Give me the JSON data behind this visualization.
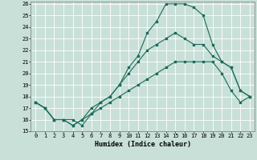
{
  "xlabel": "Humidex (Indice chaleur)",
  "xlim": [
    -0.5,
    23.5
  ],
  "ylim": [
    15,
    26
  ],
  "bg_color": "#c8e0d8",
  "line_color": "#1a6b5a",
  "grid_color": "#ffffff",
  "line1_x": [
    0,
    1,
    2,
    3,
    4,
    5,
    6,
    7,
    8,
    9,
    10,
    11,
    12,
    13,
    14,
    15,
    16,
    17,
    18,
    19,
    20,
    21,
    22,
    23
  ],
  "line1_y": [
    17.5,
    17.0,
    16.0,
    16.0,
    16.0,
    15.5,
    16.5,
    17.5,
    18.0,
    19.0,
    20.5,
    21.5,
    23.5,
    24.5,
    26.0,
    26.0,
    26.0,
    25.7,
    25.0,
    22.5,
    21.0,
    20.5,
    18.5,
    18.0
  ],
  "line2_x": [
    0,
    1,
    2,
    3,
    4,
    5,
    6,
    7,
    8,
    9,
    10,
    11,
    12,
    13,
    14,
    15,
    16,
    17,
    18,
    19,
    20,
    21,
    22,
    23
  ],
  "line2_y": [
    17.5,
    17.0,
    16.0,
    16.0,
    15.5,
    16.0,
    17.0,
    17.5,
    18.0,
    19.0,
    20.0,
    21.0,
    22.0,
    22.5,
    23.0,
    23.5,
    23.0,
    22.5,
    22.5,
    21.5,
    21.0,
    20.5,
    18.5,
    18.0
  ],
  "line3_x": [
    0,
    1,
    2,
    3,
    4,
    5,
    6,
    7,
    8,
    9,
    10,
    11,
    12,
    13,
    14,
    15,
    16,
    17,
    18,
    19,
    20,
    21,
    22,
    23
  ],
  "line3_y": [
    17.5,
    17.0,
    16.0,
    16.0,
    15.5,
    16.0,
    16.5,
    17.0,
    17.5,
    18.0,
    18.5,
    19.0,
    19.5,
    20.0,
    20.5,
    21.0,
    21.0,
    21.0,
    21.0,
    21.0,
    20.0,
    18.5,
    17.5,
    18.0
  ],
  "xtick_vals": [
    0,
    1,
    2,
    3,
    4,
    5,
    6,
    7,
    8,
    9,
    10,
    11,
    12,
    13,
    14,
    15,
    16,
    17,
    18,
    19,
    20,
    21,
    22,
    23
  ],
  "xtick_labels": [
    "0",
    "1",
    "2",
    "3",
    "4",
    "5",
    "6",
    "7",
    "8",
    "9",
    "10",
    "11",
    "12",
    "13",
    "14",
    "15",
    "16",
    "17",
    "18",
    "19",
    "20",
    "21",
    "22",
    "23"
  ],
  "ytick_vals": [
    15,
    16,
    17,
    18,
    19,
    20,
    21,
    22,
    23,
    24,
    25,
    26
  ],
  "ytick_labels": [
    "15",
    "16",
    "17",
    "18",
    "19",
    "20",
    "21",
    "22",
    "23",
    "24",
    "25",
    "26"
  ],
  "tick_fontsize": 5,
  "xlabel_fontsize": 6,
  "marker_size": 2.0,
  "line_width": 0.8
}
